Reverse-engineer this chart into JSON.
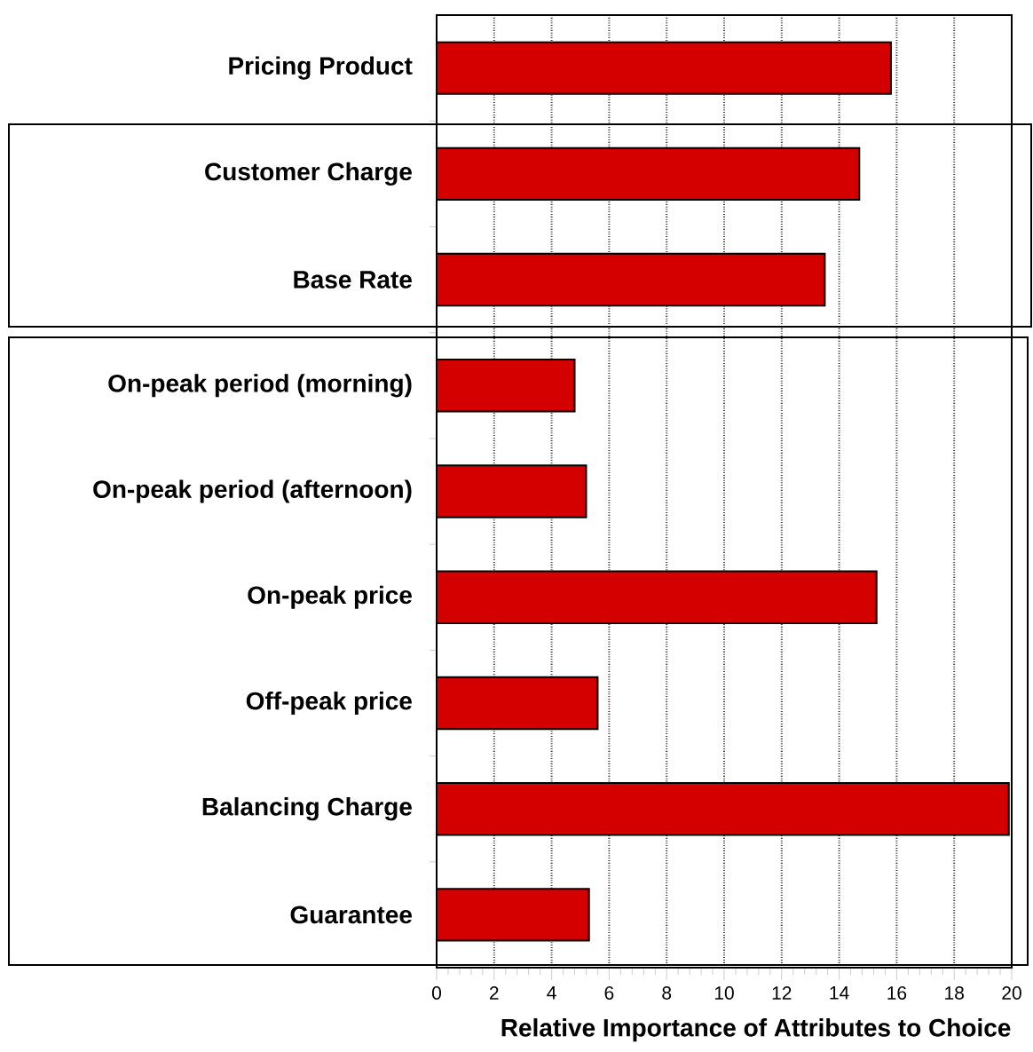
{
  "chart_data": {
    "type": "bar",
    "orientation": "horizontal",
    "xlabel": "Relative Importance of Attributes to Choice",
    "categories": [
      "Pricing Product",
      "Customer Charge",
      "Base Rate",
      "On-peak period (morning)",
      "On-peak period (afternoon)",
      "On-peak price",
      "Off-peak price",
      "Balancing Charge",
      "Guarantee"
    ],
    "values": [
      15.8,
      14.7,
      13.5,
      4.8,
      5.2,
      15.3,
      5.6,
      19.9,
      5.3
    ],
    "color": "#d40000",
    "xlim": [
      0,
      20
    ],
    "xticks": [
      0,
      2,
      4,
      6,
      8,
      10,
      12,
      14,
      16,
      18,
      20
    ],
    "grid": "x"
  }
}
